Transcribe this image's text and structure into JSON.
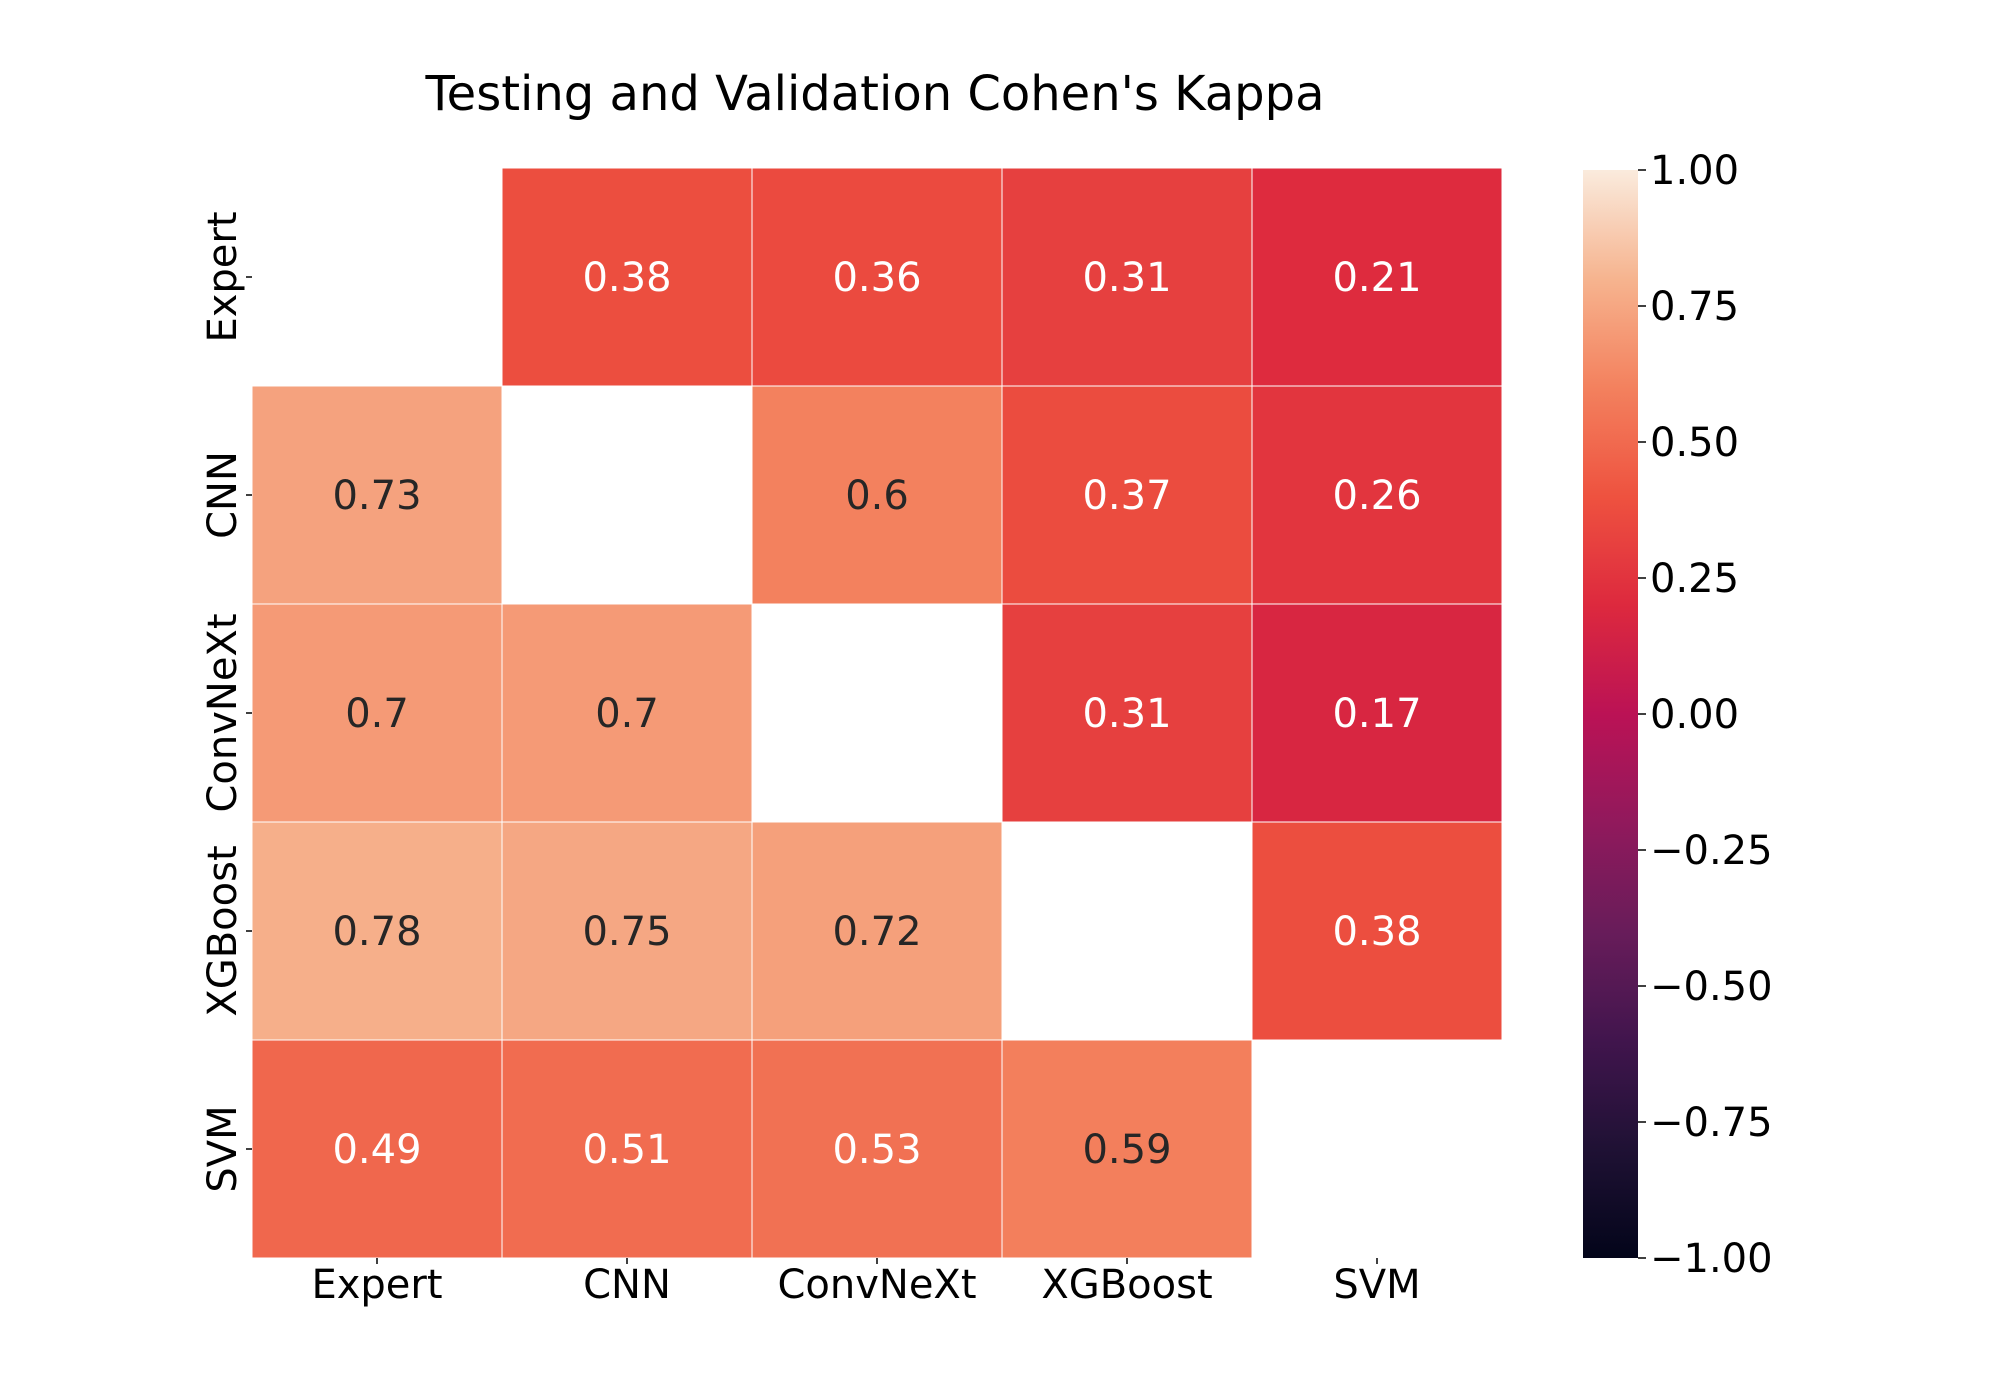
{
  "chart_data": {
    "type": "heatmap",
    "title": "Testing and Validation Cohen's Kappa",
    "xlabel": "",
    "ylabel": "",
    "x_categories": [
      "Expert",
      "CNN",
      "ConvNeXt",
      "XGBoost",
      "SVM"
    ],
    "y_categories": [
      "Expert",
      "CNN",
      "ConvNeXt",
      "XGBoost",
      "SVM"
    ],
    "cell_labels": [
      [
        null,
        "0.38",
        "0.36",
        "0.31",
        "0.21"
      ],
      [
        "0.73",
        null,
        "0.6",
        "0.37",
        "0.26"
      ],
      [
        "0.7",
        "0.7",
        null,
        "0.31",
        "0.17"
      ],
      [
        "0.78",
        "0.75",
        "0.72",
        null,
        "0.38"
      ],
      [
        "0.49",
        "0.51",
        "0.53",
        "0.59",
        null
      ]
    ],
    "colorbar": {
      "min": -1.0,
      "max": 1.0,
      "ticks": [
        1.0,
        0.75,
        0.5,
        0.25,
        0.0,
        -0.25,
        -0.5,
        -0.75,
        -1.0
      ],
      "tick_labels": [
        "1.00",
        "0.75",
        "0.50",
        "0.25",
        "0.00",
        "−0.25",
        "−0.50",
        "−0.75",
        "−1.00"
      ],
      "colormap": "rocket"
    },
    "colors": {
      "dark_text": "#262626",
      "light_text": "#ffffff",
      "cell_border": "#ffffff"
    }
  }
}
